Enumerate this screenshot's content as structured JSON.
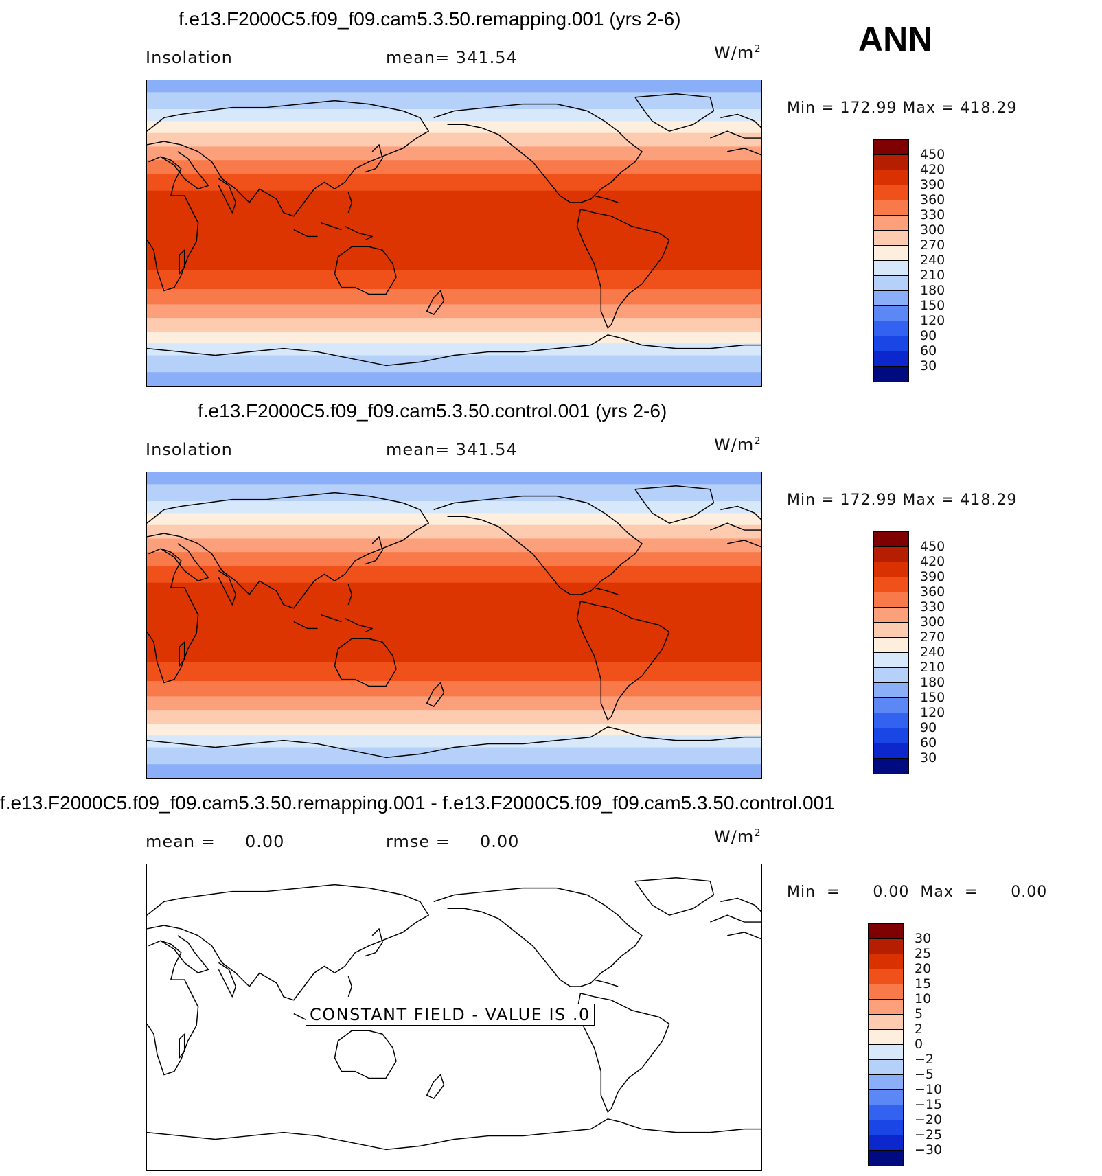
{
  "season_label": "ANN",
  "panels": [
    {
      "title": "f.e13.F2000C5.f09_f09.cam5.3.50.remapping.001 (yrs 2-6)",
      "left_label": "Insolation",
      "mid_label": "mean=  341.54",
      "units": "W/m",
      "units_sup": "2",
      "minmax": "Min  =  172.99  Max  =  418.29",
      "colorbar": {
        "ticks": [
          "450",
          "420",
          "390",
          "360",
          "330",
          "300",
          "270",
          "240",
          "210",
          "180",
          "150",
          "120",
          "90",
          "60",
          "30"
        ],
        "colors": [
          "#7f0000",
          "#b51e00",
          "#d93200",
          "#f0501a",
          "#f87a4a",
          "#fba07a",
          "#fdcbb0",
          "#fdeedd",
          "#d6e8fa",
          "#b6d1f9",
          "#8aaef8",
          "#5c88f6",
          "#3462f0",
          "#1a46e6",
          "#0c28cc",
          "#000b80"
        ]
      },
      "bands": [
        {
          "lat_top": 90,
          "lat_bot": 83,
          "color": "#8aaef8"
        },
        {
          "lat_top": 83,
          "lat_bot": 73,
          "color": "#b6d1f9"
        },
        {
          "lat_top": 73,
          "lat_bot": 66,
          "color": "#d6e8fa"
        },
        {
          "lat_top": 66,
          "lat_bot": 59,
          "color": "#fdeedd"
        },
        {
          "lat_top": 59,
          "lat_bot": 51,
          "color": "#fdcbb0"
        },
        {
          "lat_top": 51,
          "lat_bot": 43,
          "color": "#fba07a"
        },
        {
          "lat_top": 43,
          "lat_bot": 35,
          "color": "#f87a4a"
        },
        {
          "lat_top": 35,
          "lat_bot": 25,
          "color": "#f0501a"
        },
        {
          "lat_top": 25,
          "lat_bot": -22,
          "color": "#dd3502"
        },
        {
          "lat_top": -22,
          "lat_bot": -33,
          "color": "#f0501a"
        },
        {
          "lat_top": -33,
          "lat_bot": -42,
          "color": "#f87a4a"
        },
        {
          "lat_top": -42,
          "lat_bot": -50,
          "color": "#fba07a"
        },
        {
          "lat_top": -50,
          "lat_bot": -58,
          "color": "#fdcbb0"
        },
        {
          "lat_top": -58,
          "lat_bot": -65,
          "color": "#fdeedd"
        },
        {
          "lat_top": -65,
          "lat_bot": -72,
          "color": "#d6e8fa"
        },
        {
          "lat_top": -72,
          "lat_bot": -82,
          "color": "#b6d1f9"
        },
        {
          "lat_top": -82,
          "lat_bot": -90,
          "color": "#8aaef8"
        }
      ]
    },
    {
      "title": "f.e13.F2000C5.f09_f09.cam5.3.50.control.001 (yrs 2-6)",
      "left_label": "Insolation",
      "mid_label": "mean=  341.54",
      "units": "W/m",
      "units_sup": "2",
      "minmax": "Min  =  172.99  Max  =  418.29",
      "colorbar": {
        "ticks": [
          "450",
          "420",
          "390",
          "360",
          "330",
          "300",
          "270",
          "240",
          "210",
          "180",
          "150",
          "120",
          "90",
          "60",
          "30"
        ],
        "colors": [
          "#7f0000",
          "#b51e00",
          "#d93200",
          "#f0501a",
          "#f87a4a",
          "#fba07a",
          "#fdcbb0",
          "#fdeedd",
          "#d6e8fa",
          "#b6d1f9",
          "#8aaef8",
          "#5c88f6",
          "#3462f0",
          "#1a46e6",
          "#0c28cc",
          "#000b80"
        ]
      },
      "bands": [
        {
          "lat_top": 90,
          "lat_bot": 83,
          "color": "#8aaef8"
        },
        {
          "lat_top": 83,
          "lat_bot": 73,
          "color": "#b6d1f9"
        },
        {
          "lat_top": 73,
          "lat_bot": 66,
          "color": "#d6e8fa"
        },
        {
          "lat_top": 66,
          "lat_bot": 59,
          "color": "#fdeedd"
        },
        {
          "lat_top": 59,
          "lat_bot": 51,
          "color": "#fdcbb0"
        },
        {
          "lat_top": 51,
          "lat_bot": 43,
          "color": "#fba07a"
        },
        {
          "lat_top": 43,
          "lat_bot": 35,
          "color": "#f87a4a"
        },
        {
          "lat_top": 35,
          "lat_bot": 25,
          "color": "#f0501a"
        },
        {
          "lat_top": 25,
          "lat_bot": -22,
          "color": "#dd3502"
        },
        {
          "lat_top": -22,
          "lat_bot": -33,
          "color": "#f0501a"
        },
        {
          "lat_top": -33,
          "lat_bot": -42,
          "color": "#f87a4a"
        },
        {
          "lat_top": -42,
          "lat_bot": -50,
          "color": "#fba07a"
        },
        {
          "lat_top": -50,
          "lat_bot": -58,
          "color": "#fdcbb0"
        },
        {
          "lat_top": -58,
          "lat_bot": -65,
          "color": "#fdeedd"
        },
        {
          "lat_top": -65,
          "lat_bot": -72,
          "color": "#d6e8fa"
        },
        {
          "lat_top": -72,
          "lat_bot": -82,
          "color": "#b6d1f9"
        },
        {
          "lat_top": -82,
          "lat_bot": -90,
          "color": "#8aaef8"
        }
      ]
    },
    {
      "title": "f.e13.F2000C5.f09_f09.cam5.3.50.remapping.001 - f.e13.F2000C5.f09_f09.cam5.3.50.control.001",
      "left_label": "mean =     0.00",
      "mid_label": "rmse =     0.00",
      "units": "W/m",
      "units_sup": "2",
      "minmax": "Min  =      0.00  Max  =      0.00",
      "constant_note": "CONSTANT FIELD - VALUE IS .0",
      "colorbar": {
        "ticks": [
          "30",
          "25",
          "20",
          "15",
          "10",
          "5",
          "2",
          "0",
          "−2",
          "−5",
          "−10",
          "−15",
          "−20",
          "−25",
          "−30"
        ],
        "colors": [
          "#7f0000",
          "#b51e00",
          "#d93200",
          "#f0501a",
          "#f87a4a",
          "#fba07a",
          "#fdcbb0",
          "#fdeedd",
          "#d6e8fa",
          "#b6d1f9",
          "#8aaef8",
          "#5c88f6",
          "#3462f0",
          "#1a46e6",
          "#0c28cc",
          "#000b80"
        ]
      },
      "bands": []
    }
  ]
}
